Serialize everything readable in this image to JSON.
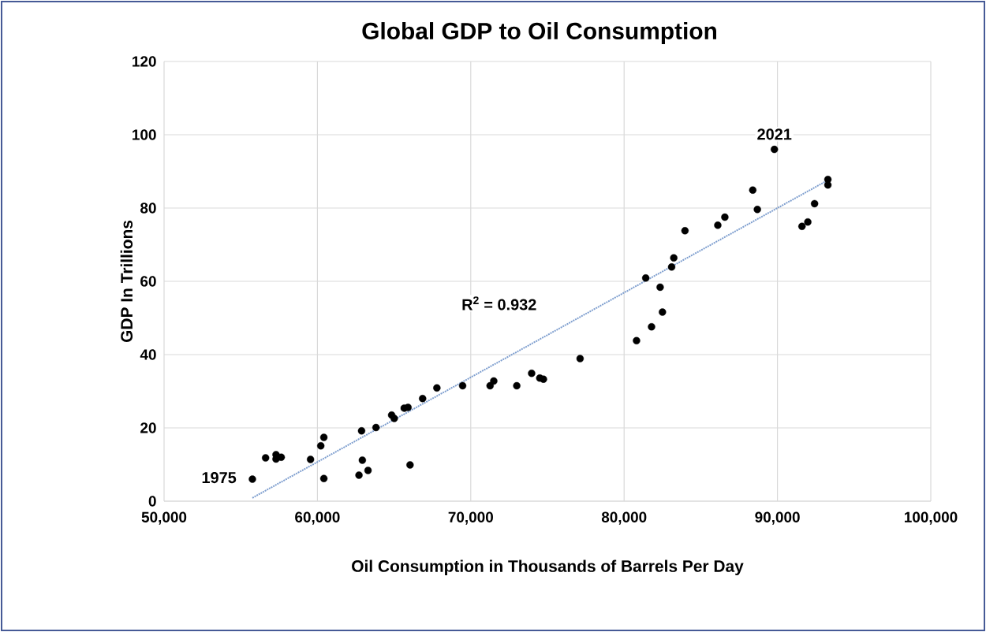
{
  "chart_data": {
    "type": "scatter",
    "title": "Global GDP to Oil Consumption",
    "xlabel": "Oil Consumption in Thousands of Barrels Per Day",
    "ylabel": "GDP In Trillions",
    "xlim": [
      50000,
      100000
    ],
    "ylim": [
      0,
      120
    ],
    "xticks": [
      {
        "value": 50000,
        "label": "50,000"
      },
      {
        "value": 60000,
        "label": "60,000"
      },
      {
        "value": 70000,
        "label": "70,000"
      },
      {
        "value": 80000,
        "label": "80,000"
      },
      {
        "value": 90000,
        "label": "90,000"
      },
      {
        "value": 100000,
        "label": "100,000"
      }
    ],
    "yticks": [
      0,
      20,
      40,
      60,
      80,
      100,
      120
    ],
    "grid": true,
    "series": [
      {
        "color": "#000000",
        "marker": "circle",
        "x": [
          55760,
          56620,
          57300,
          57300,
          57640,
          59550,
          60220,
          60420,
          60420,
          62710,
          63300,
          62930,
          62880,
          63820,
          64840,
          65010,
          65660,
          65910,
          66860,
          67790,
          69470,
          66040,
          71260,
          71500,
          73000,
          73970,
          74500,
          74740,
          77130,
          80810,
          81790,
          82500,
          82350,
          81410,
          83100,
          83240,
          83970,
          86110,
          86570,
          88390,
          88690,
          89800,
          91600,
          91980,
          92420,
          93290,
          93290
        ],
        "values": [
          6.0,
          11.8,
          12.7,
          11.5,
          12.0,
          11.4,
          15.1,
          17.4,
          6.2,
          7.1,
          8.4,
          11.2,
          19.2,
          20.1,
          23.5,
          22.6,
          25.4,
          25.6,
          28.0,
          30.9,
          31.5,
          9.9,
          31.5,
          32.8,
          31.5,
          34.9,
          33.6,
          33.3,
          38.9,
          43.8,
          47.6,
          51.6,
          58.4,
          60.9,
          63.9,
          66.4,
          73.8,
          75.3,
          77.5,
          84.9,
          79.6,
          96.0,
          75.0,
          76.2,
          81.2,
          87.8,
          86.3
        ]
      },
      {
        "type": "line",
        "color": "#7f9fcf",
        "marker": "none",
        "line_style": "dotted",
        "x": [
          55760,
          93290
        ],
        "values": [
          0.9,
          87.6
        ]
      }
    ],
    "annotations": [
      {
        "text": "1975",
        "x": 55760,
        "y": 6.0
      },
      {
        "text": "2021",
        "x": 89800,
        "y": 96.0
      },
      "R$^{2}$ = 0.932"
    ]
  }
}
